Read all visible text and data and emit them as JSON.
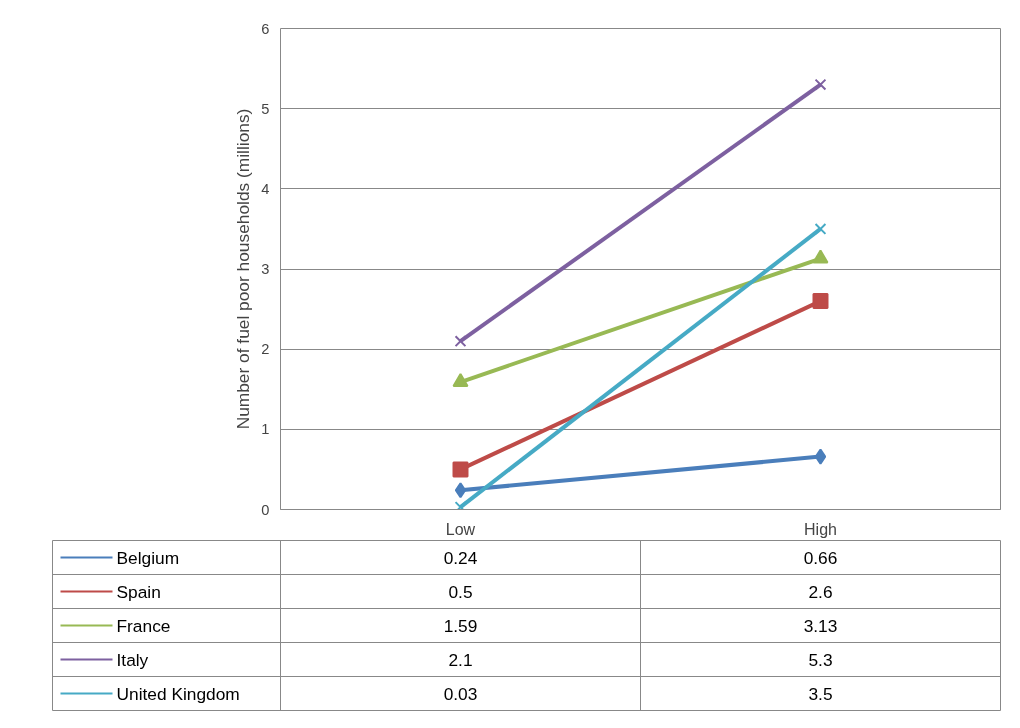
{
  "chart_data": {
    "type": "line",
    "ylabel": "Number of fuel poor households (millions)",
    "categories": [
      "Low",
      "High"
    ],
    "ylim": [
      0,
      6
    ],
    "yticks": [
      0,
      1,
      2,
      3,
      4,
      5,
      6
    ],
    "grid": "y",
    "legend": "bottom",
    "data_labels": true,
    "line_style": "solid",
    "series": [
      {
        "name": "Belgium",
        "color": "#4a7ebb",
        "marker": "diamond",
        "values": [
          0.24,
          0.66
        ]
      },
      {
        "name": "Spain",
        "color": "#be4b48",
        "marker": "square",
        "values": [
          0.5,
          2.6
        ]
      },
      {
        "name": "France",
        "color": "#98b954",
        "marker": "triangle",
        "values": [
          1.59,
          3.13
        ]
      },
      {
        "name": "Italy",
        "color": "#7d60a0",
        "marker": "cross",
        "values": [
          2.1,
          5.3
        ]
      },
      {
        "name": "United Kingdom",
        "color": "#46aac5",
        "marker": "cross",
        "values": [
          0.03,
          3.5
        ]
      }
    ]
  }
}
